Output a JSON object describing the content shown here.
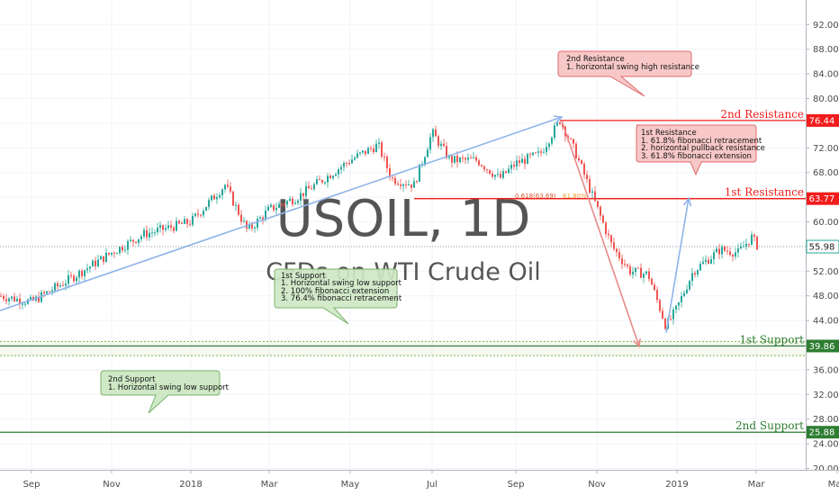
{
  "chart_data": {
    "type": "candlestick",
    "title": "USOIL, 1D",
    "subtitle": "CFDs on WTI Crude Oil",
    "y_ticks": [
      20,
      24,
      28,
      32,
      36,
      40,
      44,
      48,
      52,
      56,
      60,
      64,
      68,
      72,
      76,
      80,
      84,
      88,
      92
    ],
    "y_tick_labels": [
      "20.00",
      "24.00",
      "28.00",
      "32.00",
      "36.00",
      "40.00",
      "44.00",
      "48.00",
      "52.00",
      "56.00",
      "60.00",
      "64.00",
      "68.00",
      "72.00",
      "76.00",
      "80.00",
      "84.00",
      "88.00",
      "92.00"
    ],
    "ylim": [
      16.0,
      95.0
    ],
    "x_ticks": [
      "Sep",
      "Nov",
      "2018",
      "Mar",
      "May",
      "Jul",
      "Sep",
      "Nov",
      "2019",
      "Mar",
      "May"
    ],
    "x_tick_index": [
      35,
      124,
      212,
      299,
      389,
      480,
      573,
      663,
      752,
      840,
      930
    ],
    "price_path": [
      [
        0,
        48.0
      ],
      [
        35,
        47.0
      ],
      [
        75,
        50.5
      ],
      [
        124,
        55.0
      ],
      [
        160,
        58.0
      ],
      [
        212,
        60.0
      ],
      [
        250,
        66.0
      ],
      [
        275,
        58.5
      ],
      [
        299,
        62.0
      ],
      [
        330,
        64.0
      ],
      [
        360,
        67.0
      ],
      [
        389,
        70.0
      ],
      [
        420,
        72.5
      ],
      [
        435,
        67.0
      ],
      [
        460,
        66.0
      ],
      [
        480,
        74.5
      ],
      [
        500,
        70.0
      ],
      [
        530,
        70.0
      ],
      [
        555,
        67.0
      ],
      [
        573,
        69.5
      ],
      [
        600,
        71.0
      ],
      [
        622,
        76.5
      ],
      [
        640,
        71.0
      ],
      [
        660,
        63.5
      ],
      [
        680,
        56.0
      ],
      [
        700,
        52.0
      ],
      [
        720,
        51.5
      ],
      [
        740,
        43.0
      ],
      [
        752,
        46.0
      ],
      [
        770,
        52.0
      ],
      [
        800,
        55.5
      ],
      [
        820,
        55.0
      ],
      [
        835,
        57.5
      ],
      [
        842,
        56.0
      ]
    ],
    "current_price": "55.98",
    "levels": [
      {
        "name": "2nd Resistance",
        "value": 76.44,
        "label": "76.44",
        "color": "#f21c1c"
      },
      {
        "name": "1st Resistance",
        "value": 63.77,
        "label": "63.77",
        "color": "#f21c1c"
      },
      {
        "name": "1st Support",
        "value": 39.86,
        "label": "39.86",
        "color": "#2e7d32"
      },
      {
        "name": "2nd Support",
        "value": 25.88,
        "label": "25.88",
        "color": "#2e7d32"
      }
    ],
    "support_zone": [
      38.3,
      40.6
    ],
    "fib_level": {
      "value": 63.69,
      "label": "0.618(63.69)",
      "label2": "61.80%"
    },
    "trendlines": [
      {
        "from": [
          0,
          45.6
        ],
        "to": [
          624,
          77.0
        ],
        "color": "#8fb4e8"
      },
      {
        "from": [
          624,
          76.4
        ],
        "to": [
          710,
          39.8
        ],
        "color": "#e88a8a"
      },
      {
        "from": [
          740,
          42.0
        ],
        "to": [
          765,
          63.8
        ],
        "color": "#8fb4e8"
      }
    ],
    "annotations": [
      {
        "title": "2nd Resistance",
        "lines": [
          "1. horizontal swing high resistance"
        ]
      },
      {
        "title": "1st Resistance",
        "lines": [
          "1. 61.8% fibonacci retracement",
          "2. horizontal pullback resistance",
          "3. 61.8% fibonacci extension"
        ]
      },
      {
        "title": "1st Support",
        "lines": [
          "1. Horizontal swing low support",
          "2. 100% fibonacci extension",
          "3. 76.4% fibonacci retracement"
        ]
      },
      {
        "title": "2nd Support",
        "lines": [
          "1. Horizontal swing low support"
        ]
      }
    ],
    "colors": {
      "up": "#26a69a",
      "down": "#ef5350",
      "grid": "#f0f3fa",
      "resistance": "#f21c1c",
      "support": "#2e7d32",
      "price": "#26a69a"
    }
  }
}
